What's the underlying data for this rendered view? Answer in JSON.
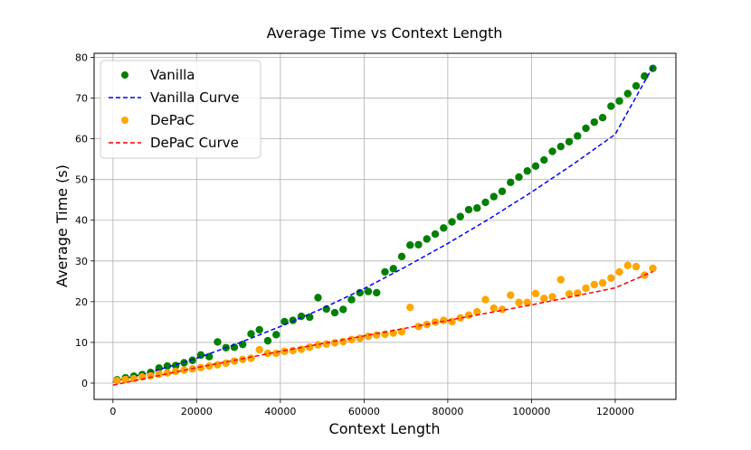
{
  "chart_data": {
    "type": "scatter",
    "title": "Average Time vs Context Length",
    "xlabel": "Context Length",
    "ylabel": "Average Time (s)",
    "xlim": [
      -4500,
      134500
    ],
    "ylim": [
      -4,
      81
    ],
    "xticks": [
      0,
      20000,
      40000,
      60000,
      80000,
      100000,
      120000
    ],
    "xtick_labels": [
      "0",
      "20000",
      "40000",
      "60000",
      "80000",
      "100000",
      "120000"
    ],
    "yticks": [
      0,
      10,
      20,
      30,
      40,
      50,
      60,
      70,
      80
    ],
    "ytick_labels": [
      "0",
      "10",
      "20",
      "30",
      "40",
      "50",
      "60",
      "70",
      "80"
    ],
    "grid": true,
    "legend_position": "top-left",
    "colors": {
      "vanilla": "#008000",
      "vanilla_curve": "#0000ff",
      "depac": "#ffa500",
      "depac_curve": "#ff0000"
    },
    "series": [
      {
        "name": "Vanilla",
        "kind": "scatter",
        "color_key": "vanilla",
        "x": [
          1000,
          3000,
          5000,
          7000,
          9000,
          11000,
          13000,
          15000,
          17000,
          19000,
          21000,
          23000,
          25000,
          27000,
          29000,
          31000,
          33000,
          35000,
          37000,
          39000,
          41000,
          43000,
          45000,
          47000,
          49000,
          51000,
          53000,
          55000,
          57000,
          59000,
          61000,
          63000,
          65000,
          67000,
          69000,
          71000,
          73000,
          75000,
          77000,
          79000,
          81000,
          83000,
          85000,
          87000,
          89000,
          91000,
          93000,
          95000,
          97000,
          99000,
          101000,
          103000,
          105000,
          107000,
          109000,
          111000,
          113000,
          115000,
          117000,
          119000,
          121000,
          123000,
          125000,
          127000,
          129000
        ],
        "y": [
          0.8,
          1.3,
          1.7,
          2.1,
          2.6,
          3.7,
          4.2,
          4.3,
          5.0,
          5.6,
          6.9,
          6.5,
          10.1,
          8.7,
          8.8,
          9.5,
          12.1,
          13.1,
          10.4,
          11.9,
          15.1,
          15.4,
          16.4,
          16.2,
          21.0,
          18.2,
          17.3,
          18.1,
          20.5,
          22.2,
          22.5,
          22.2,
          27.3,
          28.1,
          31.1,
          33.9,
          34.0,
          35.4,
          36.6,
          38.1,
          39.6,
          40.9,
          42.6,
          43.0,
          44.4,
          45.8,
          47.1,
          49.3,
          50.6,
          52.1,
          53.3,
          54.8,
          56.9,
          58.1,
          59.3,
          60.7,
          62.6,
          64.1,
          65.2,
          68.0,
          69.3,
          71.1,
          73.0,
          75.4,
          77.3
        ]
      },
      {
        "name": "Vanilla Curve",
        "kind": "line",
        "dashed": true,
        "color_key": "vanilla_curve",
        "x": [
          0,
          10000,
          20000,
          30000,
          40000,
          50000,
          60000,
          70000,
          80000,
          90000,
          100000,
          110000,
          120000,
          129000
        ],
        "y": [
          0.3,
          3.0,
          6.1,
          9.8,
          13.9,
          18.3,
          23.2,
          28.6,
          34.3,
          40.4,
          46.9,
          53.8,
          61.1,
          77.7
        ]
      },
      {
        "name": "DePaC",
        "kind": "scatter",
        "color_key": "depac",
        "x": [
          1000,
          3000,
          5000,
          7000,
          9000,
          11000,
          13000,
          15000,
          17000,
          19000,
          21000,
          23000,
          25000,
          27000,
          29000,
          31000,
          33000,
          35000,
          37000,
          39000,
          41000,
          43000,
          45000,
          47000,
          49000,
          51000,
          53000,
          55000,
          57000,
          59000,
          61000,
          63000,
          65000,
          67000,
          69000,
          71000,
          73000,
          75000,
          77000,
          79000,
          81000,
          83000,
          85000,
          87000,
          89000,
          91000,
          93000,
          95000,
          97000,
          99000,
          101000,
          103000,
          105000,
          107000,
          109000,
          111000,
          113000,
          115000,
          117000,
          119000,
          121000,
          123000,
          125000,
          127000,
          129000
        ],
        "y": [
          0.6,
          0.9,
          1.1,
          1.5,
          1.8,
          2.2,
          2.5,
          2.9,
          3.2,
          3.5,
          3.8,
          4.2,
          4.5,
          4.9,
          5.4,
          5.8,
          6.1,
          8.2,
          7.3,
          7.3,
          7.8,
          8.0,
          8.3,
          8.8,
          9.4,
          9.6,
          9.9,
          10.2,
          10.7,
          11.0,
          11.5,
          11.8,
          12.0,
          12.3,
          12.6,
          18.6,
          13.9,
          14.4,
          15.0,
          15.4,
          15.1,
          16.0,
          16.7,
          17.5,
          20.5,
          18.4,
          18.1,
          21.6,
          19.8,
          19.8,
          22.0,
          20.8,
          21.2,
          25.4,
          21.9,
          22.1,
          23.3,
          24.2,
          24.6,
          25.8,
          27.3,
          28.9,
          28.6,
          26.5,
          28.2
        ]
      },
      {
        "name": "DePaC Curve",
        "kind": "line",
        "dashed": true,
        "color_key": "depac_curve",
        "x": [
          0,
          20000,
          40000,
          60000,
          80000,
          100000,
          120000,
          129000
        ],
        "y": [
          -0.5,
          3.8,
          7.8,
          11.6,
          15.4,
          19.2,
          23.4,
          27.4
        ]
      }
    ],
    "legend": [
      "Vanilla",
      "Vanilla Curve",
      "DePaC",
      "DePaC Curve"
    ]
  }
}
